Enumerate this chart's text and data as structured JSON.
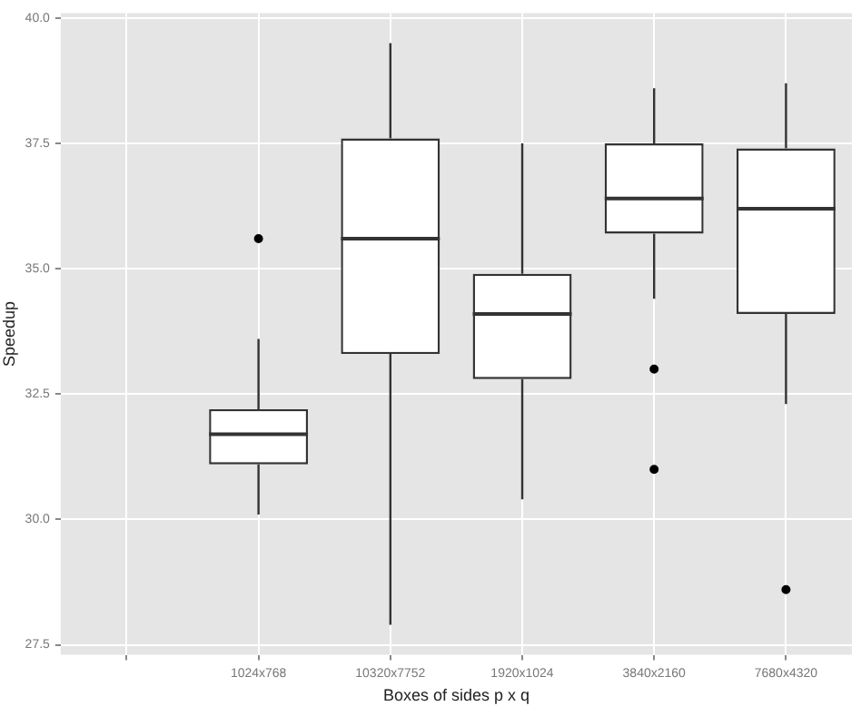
{
  "chart_data": {
    "type": "box",
    "xlabel": "Boxes of sides p x q",
    "ylabel": "Speedup",
    "categories": [
      null,
      "1024x768",
      "10320x7752",
      "1920x1024",
      "3840x2160",
      "7680x4320"
    ],
    "boxes": [
      null,
      {
        "low": 30.1,
        "q1": 31.1,
        "median": 31.7,
        "q3": 32.2,
        "high": 33.6,
        "outliers": [
          35.6
        ]
      },
      {
        "low": 27.9,
        "q1": 33.3,
        "median": 35.6,
        "q3": 37.6,
        "high": 39.5
      },
      {
        "low": 30.4,
        "q1": 32.8,
        "median": 34.1,
        "q3": 34.9,
        "high": 37.5
      },
      {
        "low": 34.4,
        "q1": 35.7,
        "median": 36.4,
        "q3": 37.5,
        "high": 38.6,
        "outliers": [
          33.0,
          31.0
        ]
      },
      {
        "low": 32.3,
        "q1": 34.1,
        "median": 36.2,
        "q3": 37.4,
        "high": 38.7,
        "outliers": [
          28.6
        ]
      }
    ],
    "ylim": [
      27.3,
      40.1
    ],
    "yticks": [
      {
        "value": 27.5,
        "label": "27.5"
      },
      {
        "value": 30,
        "label": "30.0"
      },
      {
        "value": 32.5,
        "label": "32.5"
      },
      {
        "value": 35,
        "label": "35.0"
      },
      {
        "value": 37.5,
        "label": "37.5"
      },
      {
        "value": 40,
        "label": "40.0"
      }
    ],
    "grid": true
  }
}
